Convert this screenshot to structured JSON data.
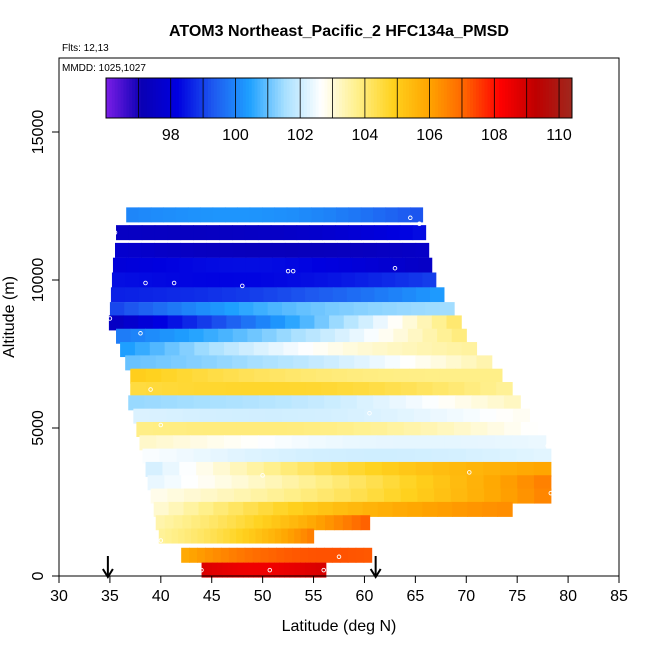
{
  "header": {
    "title": "ATOM3 Northeast_Pacific_2 HFC134a_PMSD",
    "flights": "Flts: 12,13",
    "dates": "MMDD: 1025,1027"
  },
  "chart_data": {
    "type": "heatmap",
    "title": "ATOM3 Northeast_Pacific_2 HFC134a_PMSD",
    "xlabel": "Latitude (deg N)",
    "ylabel": "Altitude (m)",
    "xlim": [
      30,
      85
    ],
    "ylim": [
      0,
      17500
    ],
    "x_ticks": [
      "30",
      "35",
      "40",
      "45",
      "50",
      "55",
      "60",
      "65",
      "70",
      "75",
      "80",
      "85"
    ],
    "y_ticks": [
      "0",
      "5000",
      "10000",
      "15000"
    ],
    "colorbar": {
      "range": [
        96.0,
        110.4
      ],
      "tick_labels": [
        "98",
        "100",
        "102",
        "104",
        "106",
        "108",
        "110"
      ],
      "tick_values": [
        98,
        100,
        102,
        104,
        106,
        108,
        110
      ],
      "colors": [
        "#7b1ee6",
        "#0a00b4",
        "#0000e0",
        "#1e5af0",
        "#1ea0ff",
        "#a8e0ff",
        "#ffffff",
        "#fff08c",
        "#ffd21e",
        "#ffa500",
        "#ff6400",
        "#ff0000",
        "#be0000",
        "#a0281e"
      ]
    },
    "rows": [
      {
        "alt": 12200,
        "lat0": 36.6,
        "lat1": 65.7,
        "v0": 100.0,
        "v1": 99.2
      },
      {
        "alt": 11600,
        "lat0": 35.6,
        "lat1": 66.0,
        "v0": 97.5,
        "v1": 98.4
      },
      {
        "alt": 11000,
        "lat0": 35.5,
        "lat1": 66.3,
        "v0": 97.8,
        "v1": 97.6
      },
      {
        "alt": 10500,
        "lat0": 35.3,
        "lat1": 66.6,
        "v0": 98.0,
        "v1": 97.5
      },
      {
        "alt": 10000,
        "lat0": 35.2,
        "lat1": 67.0,
        "v0": 98.4,
        "v1": 99.0
      },
      {
        "alt": 9500,
        "lat0": 35.1,
        "lat1": 67.8,
        "v0": 98.6,
        "v1": 100.4
      },
      {
        "alt": 9000,
        "lat0": 35.0,
        "lat1": 68.8,
        "v0": 99.0,
        "v1": 101.5
      },
      {
        "alt": 8550,
        "lat0": 34.9,
        "lat1": 69.5,
        "v0": 97.4,
        "v1": 104.2
      },
      {
        "alt": 8100,
        "lat0": 35.6,
        "lat1": 70.0,
        "v0": 99.8,
        "v1": 104.0
      },
      {
        "alt": 7650,
        "lat0": 36.0,
        "lat1": 71.0,
        "v0": 100.3,
        "v1": 103.6
      },
      {
        "alt": 7200,
        "lat0": 36.5,
        "lat1": 72.5,
        "v0": 101.0,
        "v1": 103.5
      },
      {
        "alt": 6750,
        "lat0": 37.0,
        "lat1": 73.5,
        "v0": 105.0,
        "v1": 103.8
      },
      {
        "alt": 6300,
        "lat0": 37.0,
        "lat1": 74.5,
        "v0": 104.5,
        "v1": 103.6
      },
      {
        "alt": 5850,
        "lat0": 36.8,
        "lat1": 75.3,
        "v0": 101.4,
        "v1": 103.3
      },
      {
        "alt": 5400,
        "lat0": 37.3,
        "lat1": 76.2,
        "v0": 102.2,
        "v1": 102.8
      },
      {
        "alt": 4950,
        "lat0": 37.6,
        "lat1": 77.0,
        "v0": 103.8,
        "v1": 102.6
      },
      {
        "alt": 4500,
        "lat0": 37.9,
        "lat1": 77.8,
        "v0": 103.2,
        "v1": 102.4
      },
      {
        "alt": 4050,
        "lat0": 38.2,
        "lat1": 78.3,
        "v0": 102.6,
        "v1": 102.3
      },
      {
        "alt": 3600,
        "lat0": 38.5,
        "lat1": 78.3,
        "v0": 102.0,
        "v1": 106.0
      },
      {
        "alt": 3150,
        "lat0": 38.7,
        "lat1": 78.3,
        "v0": 102.3,
        "v1": 106.7
      },
      {
        "alt": 2700,
        "lat0": 39.0,
        "lat1": 78.3,
        "v0": 102.8,
        "v1": 106.6
      },
      {
        "alt": 2250,
        "lat0": 39.3,
        "lat1": 74.5,
        "v0": 103.0,
        "v1": 106.4
      },
      {
        "alt": 1800,
        "lat0": 39.5,
        "lat1": 60.5,
        "v0": 103.4,
        "v1": 107.2
      },
      {
        "alt": 1350,
        "lat0": 39.8,
        "lat1": 55.0,
        "v0": 103.6,
        "v1": 106.7
      },
      {
        "alt": 700,
        "lat0": 42.0,
        "lat1": 60.7,
        "v0": 105.8,
        "v1": 107.2
      },
      {
        "alt": 200,
        "lat0": 44.0,
        "lat1": 56.2,
        "v0": 108.8,
        "v1": 108.9
      }
    ],
    "sample_points": [
      [
        36.0,
        12400
      ],
      [
        35.5,
        11600
      ],
      [
        64.5,
        12100
      ],
      [
        65.4,
        11900
      ],
      [
        53.0,
        10300
      ],
      [
        52.5,
        10300
      ],
      [
        63.0,
        10400
      ],
      [
        68.0,
        10300
      ],
      [
        41.3,
        9900
      ],
      [
        48.0,
        9800
      ],
      [
        38.5,
        9900
      ],
      [
        35.0,
        8700
      ],
      [
        38.0,
        8200
      ],
      [
        39.0,
        6300
      ],
      [
        40.0,
        5100
      ],
      [
        60.5,
        5500
      ],
      [
        50.0,
        3400
      ],
      [
        70.3,
        3500
      ],
      [
        78.0,
        4400
      ],
      [
        78.3,
        2800
      ],
      [
        40.0,
        1200
      ],
      [
        57.5,
        650
      ],
      [
        44.0,
        200
      ],
      [
        50.7,
        200
      ],
      [
        56.0,
        200
      ]
    ],
    "arrows": [
      34.8,
      61.1
    ]
  }
}
